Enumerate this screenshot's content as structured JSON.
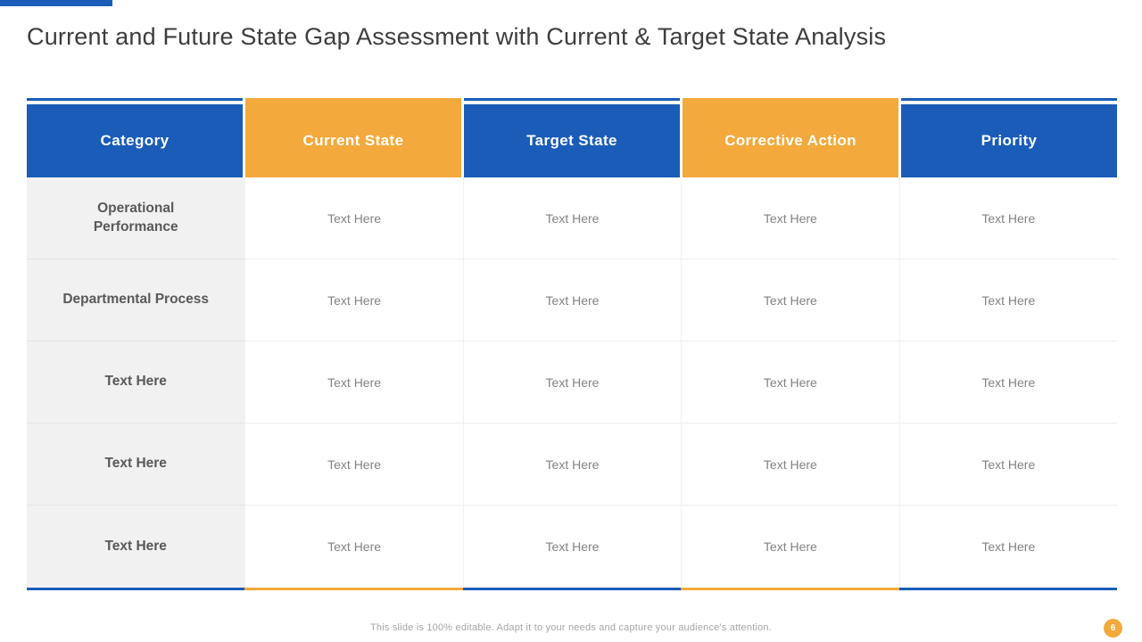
{
  "colors": {
    "blue": "#1A5CB8",
    "orange": "#F3A93C",
    "category_bg": "#F1F1F1"
  },
  "slide": {
    "title": "Current and Future State Gap Assessment with Current & Target State Analysis",
    "footer": "This slide is 100% editable. Adapt it to your needs and capture your audience's attention.",
    "page_number": "6"
  },
  "table": {
    "columns": [
      {
        "label": "Category",
        "color": "blue"
      },
      {
        "label": "Current State",
        "color": "orange"
      },
      {
        "label": "Target State",
        "color": "blue"
      },
      {
        "label": "Corrective  Action",
        "color": "orange"
      },
      {
        "label": "Priority",
        "color": "blue"
      }
    ],
    "rows": [
      {
        "category": "Operational Performance",
        "cells": [
          "Text Here",
          "Text Here",
          "Text Here",
          "Text Here"
        ]
      },
      {
        "category": "Departmental Process",
        "cells": [
          "Text Here",
          "Text Here",
          "Text Here",
          "Text Here"
        ]
      },
      {
        "category": "Text Here",
        "cells": [
          "Text Here",
          "Text Here",
          "Text Here",
          "Text Here"
        ]
      },
      {
        "category": "Text Here",
        "cells": [
          "Text Here",
          "Text Here",
          "Text Here",
          "Text Here"
        ]
      },
      {
        "category": "Text Here",
        "cells": [
          "Text Here",
          "Text Here",
          "Text Here",
          "Text Here"
        ]
      }
    ]
  }
}
